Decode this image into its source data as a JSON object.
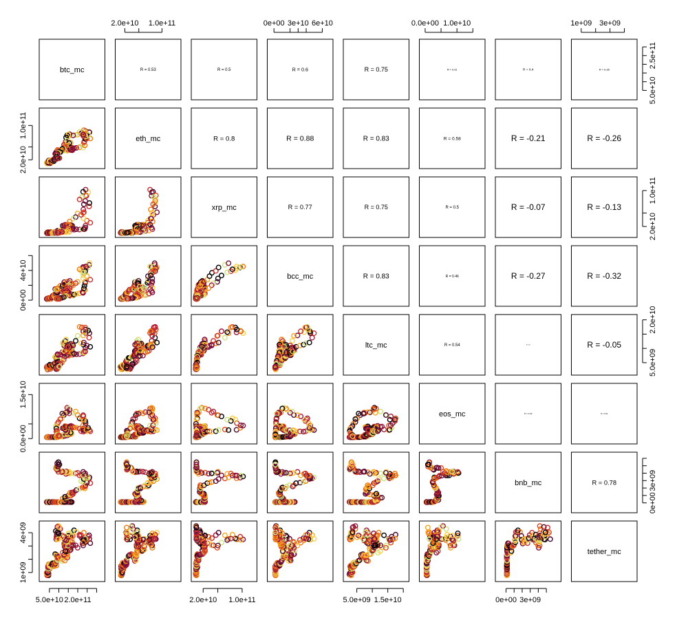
{
  "chart_data": {
    "type": "scatter",
    "variables": [
      "btc_mc",
      "eth_mc",
      "xrp_mc",
      "bcc_mc",
      "ltc_mc",
      "eos_mc",
      "bnb_mc",
      "tether_mc"
    ],
    "ranges": [
      [
        10000000000,
        330000000000
      ],
      [
        5000000000,
        135000000000
      ],
      [
        1000000000,
        125000000000
      ],
      [
        -5000000000,
        70000000000
      ],
      [
        1500000000,
        21000000000
      ],
      [
        -1000000000,
        18000000000
      ],
      [
        -1000000000,
        6500000000
      ],
      [
        500000000,
        4700000000
      ]
    ],
    "axis_ticks": {
      "top": [
        {
          "col": 1,
          "ticks": [
            {
              "v": 20000000000,
              "label": "2.0e+10"
            },
            {
              "v": 50000000000,
              "label": ""
            },
            {
              "v": 100000000000,
              "label": "1.0e+11"
            }
          ]
        },
        {
          "col": 3,
          "ticks": [
            {
              "v": 0,
              "label": "0e+00"
            },
            {
              "v": 20000000000,
              "label": ""
            },
            {
              "v": 30000000000,
              "label": "3e+10"
            },
            {
              "v": 40000000000,
              "label": ""
            },
            {
              "v": 60000000000,
              "label": "6e+10"
            }
          ]
        },
        {
          "col": 5,
          "ticks": [
            {
              "v": 0,
              "label": "0.0e+00"
            },
            {
              "v": 5000000000,
              "label": ""
            },
            {
              "v": 10000000000,
              "label": "1.0e+10"
            },
            {
              "v": 15000000000,
              "label": ""
            }
          ]
        },
        {
          "col": 7,
          "ticks": [
            {
              "v": 1000000000,
              "label": "1e+09"
            },
            {
              "v": 2000000000,
              "label": ""
            },
            {
              "v": 3000000000,
              "label": "3e+09"
            },
            {
              "v": 4000000000,
              "label": ""
            }
          ]
        }
      ],
      "bottom": [
        {
          "col": 0,
          "ticks": [
            {
              "v": 50000000000,
              "label": "5.0e+10"
            },
            {
              "v": 100000000000,
              "label": ""
            },
            {
              "v": 150000000000,
              "label": ""
            },
            {
              "v": 200000000000,
              "label": "2.0e+11"
            },
            {
              "v": 250000000000,
              "label": ""
            },
            {
              "v": 300000000000,
              "label": ""
            }
          ]
        },
        {
          "col": 2,
          "ticks": [
            {
              "v": 20000000000,
              "label": "2.0e+10"
            },
            {
              "v": 50000000000,
              "label": ""
            },
            {
              "v": 100000000000,
              "label": "1.0e+11"
            }
          ]
        },
        {
          "col": 4,
          "ticks": [
            {
              "v": 5000000000,
              "label": "5.0e+09"
            },
            {
              "v": 10000000000,
              "label": ""
            },
            {
              "v": 15000000000,
              "label": "1.5e+10"
            },
            {
              "v": 20000000000,
              "label": ""
            }
          ]
        },
        {
          "col": 6,
          "ticks": [
            {
              "v": 0,
              "label": "0e+00"
            },
            {
              "v": 1000000000,
              "label": ""
            },
            {
              "v": 2000000000,
              "label": ""
            },
            {
              "v": 3000000000,
              "label": "3e+09"
            },
            {
              "v": 4000000000,
              "label": ""
            },
            {
              "v": 5000000000,
              "label": ""
            }
          ]
        }
      ],
      "left": [
        {
          "row": 1,
          "ticks": [
            {
              "v": 20000000000,
              "label": "2.0e+10"
            },
            {
              "v": 50000000000,
              "label": ""
            },
            {
              "v": 100000000000,
              "label": "1.0e+11"
            }
          ]
        },
        {
          "row": 3,
          "ticks": [
            {
              "v": 0,
              "label": "0e+00"
            },
            {
              "v": 20000000000,
              "label": ""
            },
            {
              "v": 40000000000,
              "label": "4e+10"
            },
            {
              "v": 60000000000,
              "label": ""
            }
          ]
        },
        {
          "row": 5,
          "ticks": [
            {
              "v": 0,
              "label": "0.0e+00"
            },
            {
              "v": 5000000000,
              "label": ""
            },
            {
              "v": 15000000000,
              "label": "1.5e+10"
            }
          ]
        },
        {
          "row": 7,
          "ticks": [
            {
              "v": 1000000000,
              "label": "1e+09"
            },
            {
              "v": 2000000000,
              "label": ""
            },
            {
              "v": 3000000000,
              "label": ""
            },
            {
              "v": 4000000000,
              "label": "4e+09"
            }
          ]
        }
      ],
      "right": [
        {
          "row": 0,
          "ticks": [
            {
              "v": 50000000000,
              "label": "5.0e+10"
            },
            {
              "v": 100000000000,
              "label": ""
            },
            {
              "v": 150000000000,
              "label": ""
            },
            {
              "v": 200000000000,
              "label": ""
            },
            {
              "v": 250000000000,
              "label": "2.5e+11"
            },
            {
              "v": 300000000000,
              "label": ""
            }
          ]
        },
        {
          "row": 2,
          "ticks": [
            {
              "v": 20000000000,
              "label": "2.0e+10"
            },
            {
              "v": 50000000000,
              "label": ""
            },
            {
              "v": 100000000000,
              "label": "1.0e+11"
            }
          ]
        },
        {
          "row": 4,
          "ticks": [
            {
              "v": 5000000000,
              "label": "5.0e+09"
            },
            {
              "v": 10000000000,
              "label": ""
            },
            {
              "v": 15000000000,
              "label": ""
            },
            {
              "v": 20000000000,
              "label": "2.0e+10"
            }
          ]
        },
        {
          "row": 6,
          "ticks": [
            {
              "v": 0,
              "label": "0e+00"
            },
            {
              "v": 1000000000,
              "label": ""
            },
            {
              "v": 2000000000,
              "label": ""
            },
            {
              "v": 3000000000,
              "label": "3e+09"
            },
            {
              "v": 4000000000,
              "label": ""
            },
            {
              "v": 5000000000,
              "label": ""
            },
            {
              "v": 6000000000,
              "label": ""
            }
          ]
        }
      ]
    },
    "correlations": [
      {
        "row": 0,
        "col": 1,
        "label": "R = 0.53",
        "size": 0.5
      },
      {
        "row": 0,
        "col": 2,
        "label": "R = 0.5",
        "size": 0.5
      },
      {
        "row": 0,
        "col": 3,
        "label": "R = 0.6",
        "size": 0.6
      },
      {
        "row": 0,
        "col": 4,
        "label": "R = 0.75",
        "size": 0.75
      },
      {
        "row": 0,
        "col": 5,
        "label": "R = 0.31",
        "size": 0.32
      },
      {
        "row": 0,
        "col": 6,
        "label": "R = 0.4",
        "size": 0.4
      },
      {
        "row": 0,
        "col": 7,
        "label": "R = 0.35",
        "size": 0.33
      },
      {
        "row": 1,
        "col": 2,
        "label": "R = 0.8",
        "size": 0.8
      },
      {
        "row": 1,
        "col": 3,
        "label": "R = 0.88",
        "size": 0.88
      },
      {
        "row": 1,
        "col": 4,
        "label": "R = 0.83",
        "size": 0.83
      },
      {
        "row": 1,
        "col": 5,
        "label": "R = 0.58",
        "size": 0.55
      },
      {
        "row": 1,
        "col": 6,
        "label": "R = -0.21",
        "size": 1.0
      },
      {
        "row": 1,
        "col": 7,
        "label": "R = -0.26",
        "size": 1.0
      },
      {
        "row": 2,
        "col": 3,
        "label": "R = 0.77",
        "size": 0.77
      },
      {
        "row": 2,
        "col": 4,
        "label": "R = 0.75",
        "size": 0.75
      },
      {
        "row": 2,
        "col": 5,
        "label": "R = 0.5",
        "size": 0.5
      },
      {
        "row": 2,
        "col": 6,
        "label": "R = -0.07",
        "size": 1.0
      },
      {
        "row": 2,
        "col": 7,
        "label": "R = -0.13",
        "size": 1.0
      },
      {
        "row": 3,
        "col": 4,
        "label": "R = 0.83",
        "size": 0.83
      },
      {
        "row": 3,
        "col": 5,
        "label": "R = 0.46",
        "size": 0.42
      },
      {
        "row": 3,
        "col": 6,
        "label": "R = -0.27",
        "size": 1.0
      },
      {
        "row": 3,
        "col": 7,
        "label": "R = -0.32",
        "size": 1.0
      },
      {
        "row": 4,
        "col": 5,
        "label": "R = 0.54",
        "size": 0.5
      },
      {
        "row": 4,
        "col": 6,
        "label": "R = 0.05",
        "size": 0.12
      },
      {
        "row": 4,
        "col": 7,
        "label": "R = -0.05",
        "size": 1.0
      },
      {
        "row": 5,
        "col": 6,
        "label": "R = 0.02",
        "size": 0.25
      },
      {
        "row": 5,
        "col": 7,
        "label": "R = 0.04",
        "size": 0.22
      },
      {
        "row": 6,
        "col": 7,
        "label": "R = 0.78",
        "size": 0.78
      }
    ],
    "palette": [
      "#000000",
      "#4a0a2e",
      "#7b0f3a",
      "#a0183d",
      "#c62f2f",
      "#e04a1c",
      "#f07a10",
      "#f9a51f",
      "#fbd04a",
      "#cfe27a"
    ],
    "grid": false,
    "legend": "none"
  }
}
